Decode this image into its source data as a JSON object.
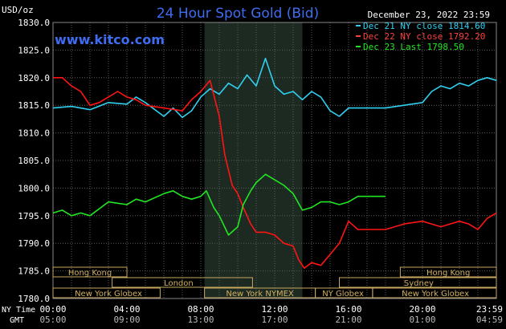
{
  "header": {
    "title": "24 Hour Spot Gold (Bid)",
    "unit": "USD/oz",
    "timestamp": "December 23, 2022 23:59",
    "brand": "www.kitco.com"
  },
  "colors": {
    "background": "#000000",
    "grid": "#5a5a5a",
    "title": "#3f6cf0",
    "brand": "#3f6cf0",
    "series_dec21": "#2fd0f0",
    "series_dec22": "#ff1414",
    "series_dec23": "#22e622",
    "nymex_shade": "#1d2a22",
    "session_box_border": "#c8a860",
    "session_text": "#d2b060"
  },
  "legend": {
    "items": [
      {
        "label": "Dec 21 NY close 1814.60",
        "color": "#2fd0f0"
      },
      {
        "label": "Dec 22 NY close 1792.20",
        "color": "#ff4040"
      },
      {
        "label": "Dec 23 Last 1798.50",
        "color": "#22e622"
      }
    ]
  },
  "sessions": {
    "row1": [
      {
        "label": "Hong Kong"
      },
      {
        "label": "Hong Kong"
      }
    ],
    "row2": [
      {
        "label": "London"
      },
      {
        "label": "Sydney"
      }
    ],
    "row3": [
      {
        "label": "New York Globex"
      },
      {
        "label": "New York NYMEX"
      },
      {
        "label": "NY Globex"
      },
      {
        "label": "New York Globex"
      }
    ]
  },
  "footer": {
    "ny_label": "NY Time",
    "gmt_label": "GMT",
    "gmt_ticks": [
      "05:00",
      "09:00",
      "13:00",
      "17:00",
      "21:00",
      "01:00",
      "04:59"
    ]
  },
  "chart_data": {
    "type": "line",
    "title": "24 Hour Spot Gold (Bid)",
    "ylabel": "USD/oz",
    "xlabel": "NY Time",
    "ylim": [
      1780,
      1830
    ],
    "yticks": [
      "1830.0",
      "1825.0",
      "1820.0",
      "1815.0",
      "1810.0",
      "1805.0",
      "1800.0",
      "1795.0",
      "1790.0",
      "1785.0",
      "1780.0"
    ],
    "xlim": [
      0,
      24
    ],
    "xtick_hours": [
      0,
      4,
      8,
      12,
      16,
      20,
      24
    ],
    "xticks": [
      "00:00",
      "04:00",
      "08:00",
      "12:00",
      "16:00",
      "20:00",
      "23:59"
    ],
    "grid": true,
    "legend_position": "top-right",
    "shaded_region_hours": [
      8.2,
      13.5
    ],
    "series": [
      {
        "name": "Dec 21 NY close 1814.60",
        "color": "#2fd0f0",
        "x": [
          0,
          1,
          2,
          3,
          4,
          4.5,
          5,
          6,
          6.5,
          7,
          7.5,
          8,
          8.5,
          9,
          9.5,
          10,
          10.5,
          11,
          11.5,
          12,
          12.5,
          13,
          13.5,
          14,
          14.5,
          15,
          15.5,
          16,
          17,
          18,
          19,
          20,
          20.5,
          21,
          21.5,
          22,
          22.5,
          23,
          23.5,
          24
        ],
        "y": [
          1814.5,
          1814.8,
          1814.2,
          1815.5,
          1815.2,
          1816.5,
          1815.5,
          1813.0,
          1814.5,
          1812.8,
          1814.0,
          1816.5,
          1818.0,
          1817.0,
          1819.0,
          1818.0,
          1820.5,
          1818.5,
          1823.5,
          1818.5,
          1817.0,
          1817.5,
          1816.0,
          1817.5,
          1816.5,
          1814.0,
          1813.0,
          1814.5,
          1814.5,
          1814.5,
          1815.0,
          1815.5,
          1817.5,
          1818.5,
          1818.0,
          1819.0,
          1818.5,
          1819.5,
          1820.0,
          1819.5
        ]
      },
      {
        "name": "Dec 22 NY close 1792.20",
        "color": "#ff1414",
        "x": [
          0,
          0.5,
          1,
          1.5,
          2,
          2.5,
          3,
          3.5,
          4,
          4.5,
          5,
          6,
          7,
          7.5,
          8,
          8.5,
          9,
          9.3,
          9.7,
          10,
          10.3,
          10.7,
          11,
          11.5,
          12,
          12.5,
          13,
          13.3,
          13.6,
          14,
          14.5,
          15,
          15.5,
          16,
          16.5,
          17,
          18,
          19,
          20,
          21,
          21.5,
          22,
          22.5,
          23,
          23.5,
          24
        ],
        "y": [
          1820.0,
          1820.0,
          1818.5,
          1817.5,
          1815.0,
          1815.5,
          1816.5,
          1817.5,
          1816.5,
          1816.0,
          1815.0,
          1814.5,
          1814.0,
          1816.0,
          1817.5,
          1819.5,
          1813.0,
          1806.0,
          1800.5,
          1799.0,
          1796.5,
          1793.5,
          1792.0,
          1792.0,
          1791.5,
          1790.0,
          1789.5,
          1787.0,
          1785.5,
          1786.5,
          1786.0,
          1788.0,
          1790.0,
          1794.0,
          1792.5,
          1792.5,
          1792.5,
          1793.5,
          1794.0,
          1793.0,
          1793.5,
          1794.0,
          1793.5,
          1792.5,
          1794.5,
          1795.5
        ]
      },
      {
        "name": "Dec 23 Last 1798.50",
        "color": "#22e622",
        "x": [
          0,
          0.5,
          1,
          1.5,
          2,
          3,
          4,
          4.5,
          5,
          6,
          6.5,
          7,
          7.5,
          8,
          8.3,
          8.7,
          9,
          9.5,
          10,
          10.3,
          10.7,
          11,
          11.5,
          12,
          12.5,
          13,
          13.5,
          14,
          14.5,
          15,
          15.5,
          16,
          16.5,
          17,
          17.5,
          18
        ],
        "y": [
          1795.5,
          1796.0,
          1795.0,
          1795.5,
          1795.0,
          1797.5,
          1797.0,
          1798.0,
          1797.5,
          1799.0,
          1799.5,
          1798.5,
          1798.0,
          1798.5,
          1799.5,
          1796.5,
          1795.0,
          1791.5,
          1793.0,
          1797.0,
          1799.5,
          1801.0,
          1802.5,
          1801.5,
          1800.5,
          1799.0,
          1796.0,
          1796.5,
          1797.5,
          1797.5,
          1797.0,
          1797.5,
          1798.5,
          1798.5,
          1798.5,
          1798.5
        ]
      }
    ]
  }
}
